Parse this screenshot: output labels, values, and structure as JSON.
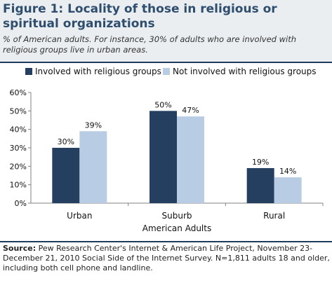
{
  "header": {
    "title": "Figure 1: Locality of those in religious or spiritual organizations",
    "subtitle": "% of American adults. For instance, 30% of adults who are involved with religious groups live in urban areas."
  },
  "footer": {
    "source_label": "Source:",
    "source_text": "Pew Research Center's Internet & American Life Project, November 23-December 21, 2010 Social Side of the Internet Survey. N=1,811 adults 18 and older, including both cell phone and landline."
  },
  "colors": {
    "involved": "#243f5f",
    "not_involved": "#b8cce4",
    "title": "#2f4e6e"
  },
  "chart_data": {
    "type": "bar",
    "categories": [
      "Urban",
      "Suburb",
      "Rural"
    ],
    "xlabel": "American Adults",
    "ylabel": "",
    "ylim": [
      0,
      60
    ],
    "yticks": [
      "0%",
      "10%",
      "20%",
      "30%",
      "40%",
      "50%",
      "60%"
    ],
    "grid": false,
    "legend_position": "top",
    "series": [
      {
        "name": "Involved with religious groups",
        "values": [
          30,
          50,
          19
        ],
        "labels": [
          "30%",
          "50%",
          "19%"
        ],
        "color": "#243f5f"
      },
      {
        "name": "Not involved with religious groups",
        "values": [
          39,
          47,
          14
        ],
        "labels": [
          "39%",
          "47%",
          "14%"
        ],
        "color": "#b8cce4"
      }
    ]
  }
}
